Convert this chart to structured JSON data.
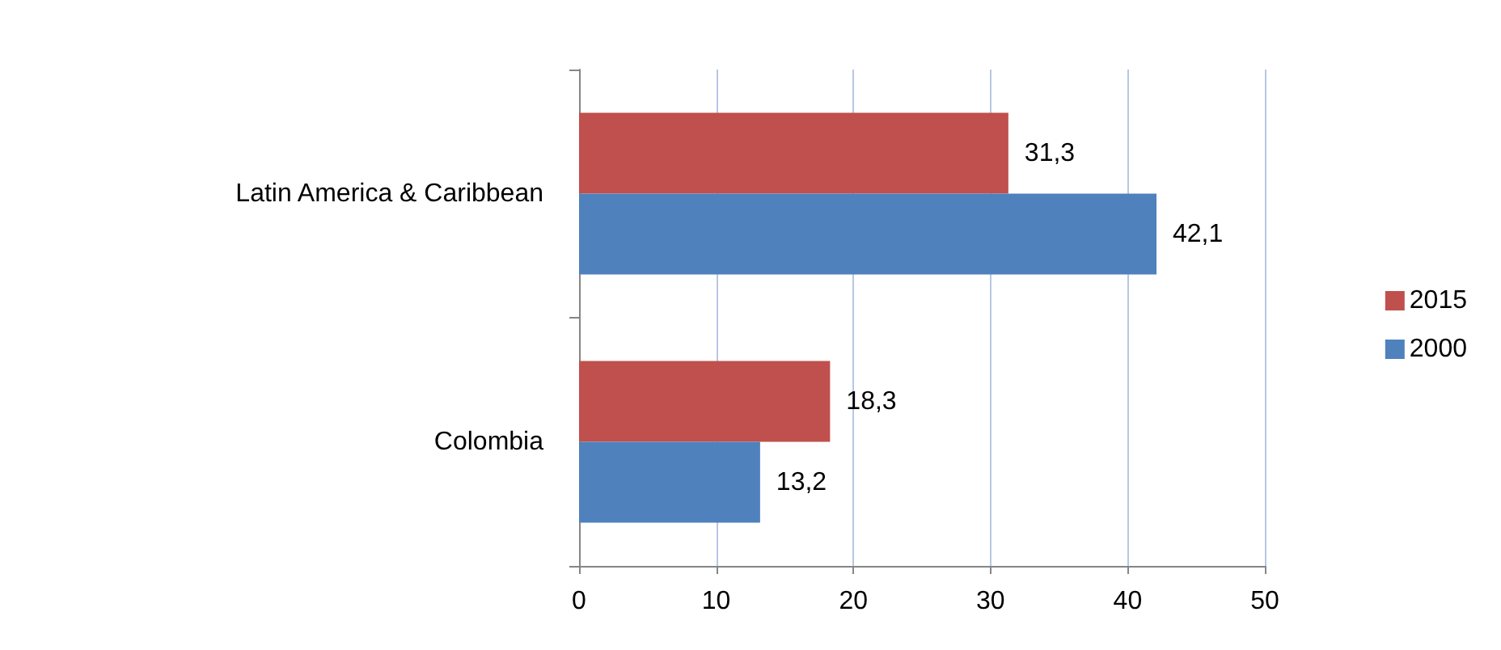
{
  "chart_data": {
    "type": "bar",
    "orientation": "horizontal",
    "categories": [
      "Latin America & Caribbean",
      "Colombia"
    ],
    "series": [
      {
        "name": "2015",
        "color": "#c0504d",
        "values": [
          31.3,
          18.3
        ],
        "value_labels": [
          "31,3",
          "18,3"
        ]
      },
      {
        "name": "2000",
        "color": "#4f81bd",
        "values": [
          42.1,
          13.2
        ],
        "value_labels": [
          "42,1",
          "13,2"
        ]
      }
    ],
    "xlim": [
      0,
      50
    ],
    "xticks": [
      0,
      10,
      20,
      30,
      40,
      50
    ],
    "grid": "x",
    "legend": "right"
  }
}
